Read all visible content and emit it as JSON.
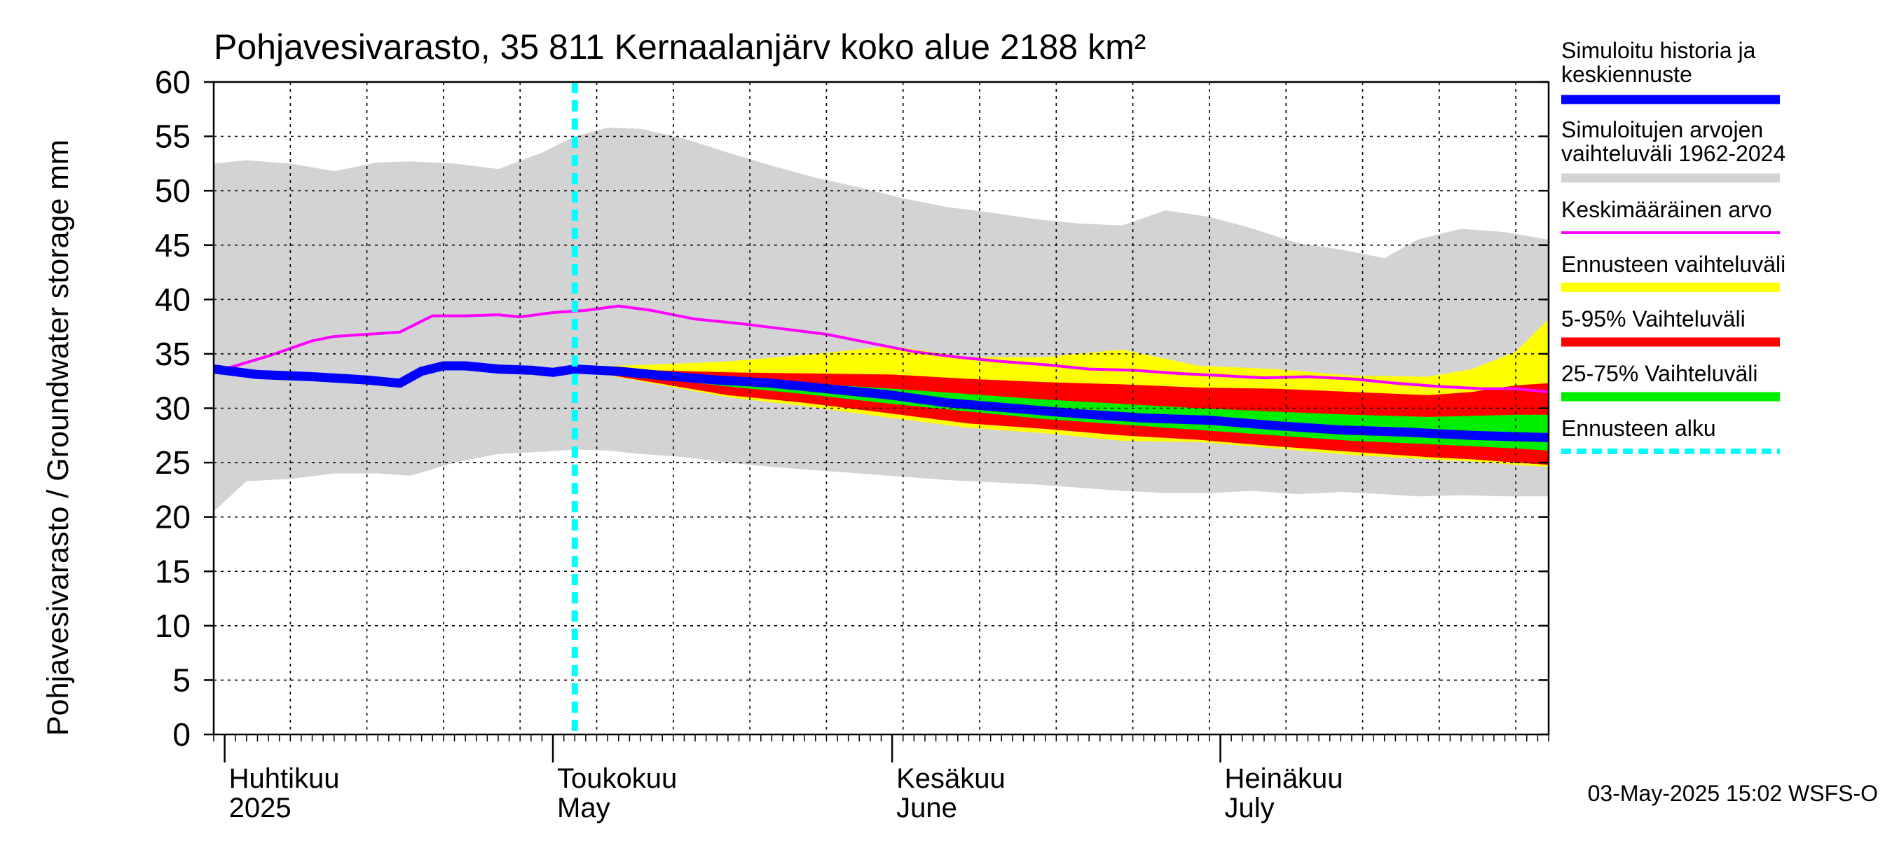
{
  "chart_data": {
    "type": "area",
    "title": "Pohjavesivarasto, 35 811 Kernaalanjärv koko alue 2188 km²",
    "ylabel": "Pohjavesivarasto / Groundwater storage   mm",
    "ylim": [
      0,
      60
    ],
    "yticks": [
      "0",
      "5",
      "10",
      "15",
      "20",
      "25",
      "30",
      "35",
      "40",
      "45",
      "50",
      "55",
      "60"
    ],
    "xlim": [
      "2025-03-31",
      "2025-07-31"
    ],
    "grid": true,
    "legend_position": "right",
    "months": [
      {
        "fi": "Huhtikuu",
        "en": "2025",
        "start": "2025-04-01"
      },
      {
        "fi": "Toukokuu",
        "en": "May",
        "start": "2025-05-01"
      },
      {
        "fi": "Kesäkuu",
        "en": "June",
        "start": "2025-06-01"
      },
      {
        "fi": "Heinäkuu",
        "en": "July",
        "start": "2025-07-01"
      }
    ],
    "forecast_start": "2025-05-03",
    "footer": "03-May-2025 15:02 WSFS-O",
    "legend": [
      {
        "label": [
          "Simuloitu historia ja",
          "keskiennuste"
        ],
        "color": "#0000ff",
        "style": "thick"
      },
      {
        "label": [
          "Simuloitujen arvojen",
          "vaihteluväli 1962-2024"
        ],
        "color": "#d3d3d3",
        "style": "band"
      },
      {
        "label": [
          "Keskimääräinen arvo"
        ],
        "color": "#ff00ff",
        "style": "line"
      },
      {
        "label": [
          "Ennusteen vaihteluväli"
        ],
        "color": "#ffff00",
        "style": "band"
      },
      {
        "label": [
          "5-95% Vaihteluväli"
        ],
        "color": "#ff0000",
        "style": "band"
      },
      {
        "label": [
          "25-75% Vaihteluväli"
        ],
        "color": "#00ee00",
        "style": "band"
      },
      {
        "label": [
          "Ennusteen alku"
        ],
        "color": "#00ffff",
        "style": "dashed"
      }
    ],
    "series": [
      {
        "name": "Simuloitujen arvojen vaihteluväli 1962-2024",
        "kind": "band",
        "color": "#d3d3d3",
        "x": [
          "2025-03-31",
          "2025-04-03",
          "2025-04-07",
          "2025-04-11",
          "2025-04-15",
          "2025-04-18",
          "2025-04-22",
          "2025-04-26",
          "2025-04-30",
          "2025-05-03",
          "2025-05-06",
          "2025-05-09",
          "2025-05-13",
          "2025-05-17",
          "2025-05-21",
          "2025-05-25",
          "2025-05-29",
          "2025-06-02",
          "2025-06-06",
          "2025-06-10",
          "2025-06-14",
          "2025-06-18",
          "2025-06-22",
          "2025-06-26",
          "2025-06-30",
          "2025-07-04",
          "2025-07-08",
          "2025-07-12",
          "2025-07-16",
          "2025-07-19",
          "2025-07-23",
          "2025-07-27",
          "2025-07-31"
        ],
        "upper": [
          52.5,
          52.8,
          52.5,
          51.8,
          52.6,
          52.7,
          52.5,
          52.0,
          53.5,
          55.0,
          55.8,
          55.7,
          54.8,
          53.5,
          52.3,
          51.2,
          50.3,
          49.3,
          48.5,
          48.0,
          47.4,
          47.0,
          46.8,
          48.2,
          47.6,
          46.5,
          45.2,
          44.6,
          43.8,
          45.5,
          46.5,
          46.2,
          45.5
        ],
        "lower": [
          20.5,
          23.3,
          23.5,
          24.0,
          24.0,
          23.8,
          25.0,
          25.8,
          26.0,
          26.2,
          26.1,
          25.8,
          25.5,
          25.0,
          24.6,
          24.3,
          24.0,
          23.7,
          23.4,
          23.2,
          23.0,
          22.7,
          22.4,
          22.2,
          22.2,
          22.4,
          22.1,
          22.3,
          22.1,
          21.9,
          22.0,
          21.9,
          21.9
        ]
      },
      {
        "name": "Ennusteen vaihteluväli",
        "kind": "band",
        "color": "#ffff00",
        "x": [
          "2025-05-03",
          "2025-05-10",
          "2025-05-17",
          "2025-05-24",
          "2025-06-01",
          "2025-06-08",
          "2025-06-15",
          "2025-06-22",
          "2025-06-29",
          "2025-07-06",
          "2025-07-13",
          "2025-07-20",
          "2025-07-24",
          "2025-07-28",
          "2025-07-31"
        ],
        "upper": [
          33.8,
          34.0,
          34.3,
          34.9,
          35.7,
          34.7,
          34.7,
          35.4,
          33.9,
          33.6,
          33.0,
          32.9,
          33.6,
          35.2,
          38.2
        ],
        "lower": [
          33.6,
          32.3,
          31.0,
          30.2,
          29.1,
          28.2,
          27.7,
          27.0,
          26.9,
          26.3,
          25.7,
          25.3,
          25.1,
          24.8,
          24.6
        ]
      },
      {
        "name": "5-95% Vaihteluväli",
        "kind": "band",
        "color": "#ff0000",
        "x": [
          "2025-05-03",
          "2025-05-10",
          "2025-05-17",
          "2025-05-24",
          "2025-06-01",
          "2025-06-08",
          "2025-06-15",
          "2025-06-22",
          "2025-06-29",
          "2025-07-06",
          "2025-07-13",
          "2025-07-20",
          "2025-07-24",
          "2025-07-28",
          "2025-07-31"
        ],
        "upper": [
          33.7,
          33.5,
          33.3,
          33.2,
          33.1,
          32.7,
          32.4,
          32.2,
          31.9,
          31.8,
          31.5,
          31.2,
          31.5,
          32.1,
          32.3
        ],
        "lower": [
          33.6,
          32.4,
          31.2,
          30.5,
          29.5,
          28.6,
          28.1,
          27.5,
          27.1,
          26.5,
          26.0,
          25.5,
          25.3,
          25.0,
          24.8
        ]
      },
      {
        "name": "25-75% Vaihteluväli",
        "kind": "band",
        "color": "#00ee00",
        "x": [
          "2025-05-03",
          "2025-05-10",
          "2025-05-17",
          "2025-05-24",
          "2025-06-01",
          "2025-06-08",
          "2025-06-15",
          "2025-06-22",
          "2025-06-29",
          "2025-07-06",
          "2025-07-13",
          "2025-07-20",
          "2025-07-24",
          "2025-07-28",
          "2025-07-31"
        ],
        "upper": [
          33.6,
          33.1,
          32.6,
          32.3,
          31.8,
          31.3,
          30.8,
          30.4,
          30.0,
          29.7,
          29.4,
          29.2,
          29.3,
          29.4,
          29.4
        ],
        "lower": [
          33.6,
          32.8,
          32.0,
          31.3,
          30.4,
          29.7,
          29.0,
          28.5,
          28.0,
          27.5,
          27.0,
          26.7,
          26.5,
          26.3,
          26.1
        ]
      },
      {
        "name": "Keskimääräinen arvo",
        "kind": "line",
        "color": "#ff00ff",
        "x": [
          "2025-03-31",
          "2025-04-03",
          "2025-04-05",
          "2025-04-07",
          "2025-04-09",
          "2025-04-11",
          "2025-04-14",
          "2025-04-17",
          "2025-04-20",
          "2025-04-23",
          "2025-04-26",
          "2025-04-28",
          "2025-05-01",
          "2025-05-04",
          "2025-05-07",
          "2025-05-10",
          "2025-05-14",
          "2025-05-18",
          "2025-05-22",
          "2025-05-26",
          "2025-05-30",
          "2025-06-03",
          "2025-06-07",
          "2025-06-11",
          "2025-06-15",
          "2025-06-19",
          "2025-06-23",
          "2025-06-27",
          "2025-07-01",
          "2025-07-05",
          "2025-07-09",
          "2025-07-13",
          "2025-07-17",
          "2025-07-21",
          "2025-07-25",
          "2025-07-28",
          "2025-07-31"
        ],
        "values": [
          33.3,
          34.2,
          34.8,
          35.5,
          36.2,
          36.6,
          36.8,
          37.0,
          38.5,
          38.5,
          38.6,
          38.4,
          38.8,
          39.0,
          39.4,
          39.0,
          38.2,
          37.8,
          37.3,
          36.8,
          36.0,
          35.2,
          34.7,
          34.3,
          34.0,
          33.6,
          33.5,
          33.2,
          33.0,
          32.8,
          32.9,
          32.7,
          32.3,
          32.0,
          31.8,
          31.8,
          31.5
        ]
      },
      {
        "name": "Simuloitu historia ja keskiennuste",
        "kind": "line",
        "color": "#0000ff",
        "x": [
          "2025-03-31",
          "2025-04-04",
          "2025-04-09",
          "2025-04-14",
          "2025-04-17",
          "2025-04-19",
          "2025-04-21",
          "2025-04-23",
          "2025-04-26",
          "2025-04-29",
          "2025-05-01",
          "2025-05-03",
          "2025-05-07",
          "2025-05-11",
          "2025-05-16",
          "2025-05-21",
          "2025-05-26",
          "2025-06-01",
          "2025-06-06",
          "2025-06-12",
          "2025-06-18",
          "2025-06-24",
          "2025-06-30",
          "2025-07-06",
          "2025-07-12",
          "2025-07-18",
          "2025-07-24",
          "2025-07-31"
        ],
        "values": [
          33.6,
          33.1,
          32.9,
          32.6,
          32.3,
          33.4,
          33.9,
          33.9,
          33.6,
          33.5,
          33.3,
          33.6,
          33.4,
          33.0,
          32.6,
          32.3,
          31.8,
          31.2,
          30.5,
          30.0,
          29.5,
          29.1,
          28.9,
          28.4,
          28.0,
          27.8,
          27.5,
          27.3
        ]
      }
    ]
  }
}
